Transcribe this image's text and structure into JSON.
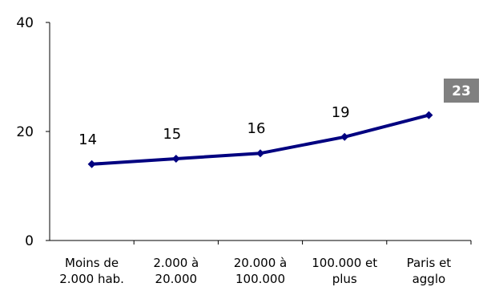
{
  "chart_data": {
    "type": "line",
    "title": "",
    "xlabel": "",
    "ylabel": "",
    "ylim": [
      0,
      40
    ],
    "yticks": [
      0,
      20,
      40
    ],
    "grid": false,
    "categories": [
      [
        "Moins de",
        "2.000 hab."
      ],
      [
        "2.000 à",
        "20.000"
      ],
      [
        "20.000 à",
        "100.000"
      ],
      [
        "100.000 et",
        "plus"
      ],
      [
        "Paris et",
        "agglo"
      ]
    ],
    "series": [
      {
        "values": [
          14,
          15,
          16,
          19,
          23
        ],
        "labels": [
          "14",
          "15",
          "16",
          "19",
          "23"
        ],
        "color": "#000080",
        "marker": "diamond"
      }
    ],
    "highlight": {
      "index": 4,
      "background": "#808080",
      "text_color": "#ffffff"
    }
  }
}
